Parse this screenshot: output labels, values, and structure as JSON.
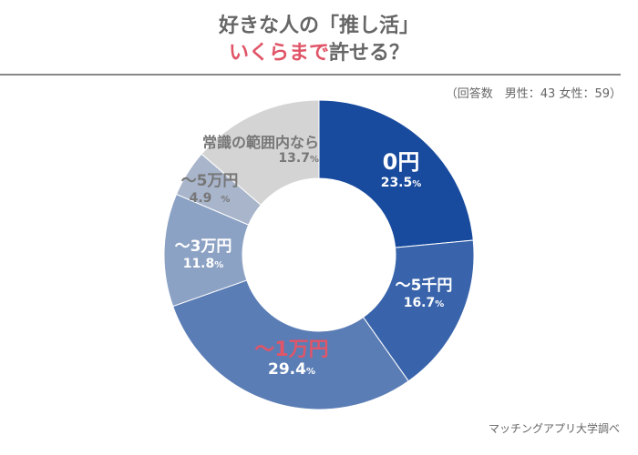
{
  "header": {
    "title_line1": "好きな人の「推し活」",
    "title_line2_accent": "いくらまで",
    "title_line2_rest": "許せる？",
    "respondents": "（回答数　男性：43 女性：59）"
  },
  "source": "マッチングアプリ大学調べ",
  "chart_data": {
    "type": "pie",
    "donut": true,
    "unit": "%",
    "categories": [
      "0円",
      "〜5千円",
      "〜1万円",
      "〜3万円",
      "〜5万円",
      "常識の範囲内なら"
    ],
    "values": [
      23.5,
      16.7,
      29.4,
      11.8,
      4.9,
      13.7
    ],
    "labels": [
      "23.5",
      "16.7",
      "29.4",
      "11.8",
      "4.9",
      "13.7"
    ],
    "colors": [
      "#184a9d",
      "#3964ab",
      "#5b7db5",
      "#8ca2c4",
      "#a9b5cb",
      "#d4d4d4"
    ],
    "highlight_color": "#e05568",
    "start": "top",
    "direction": "clockwise"
  }
}
